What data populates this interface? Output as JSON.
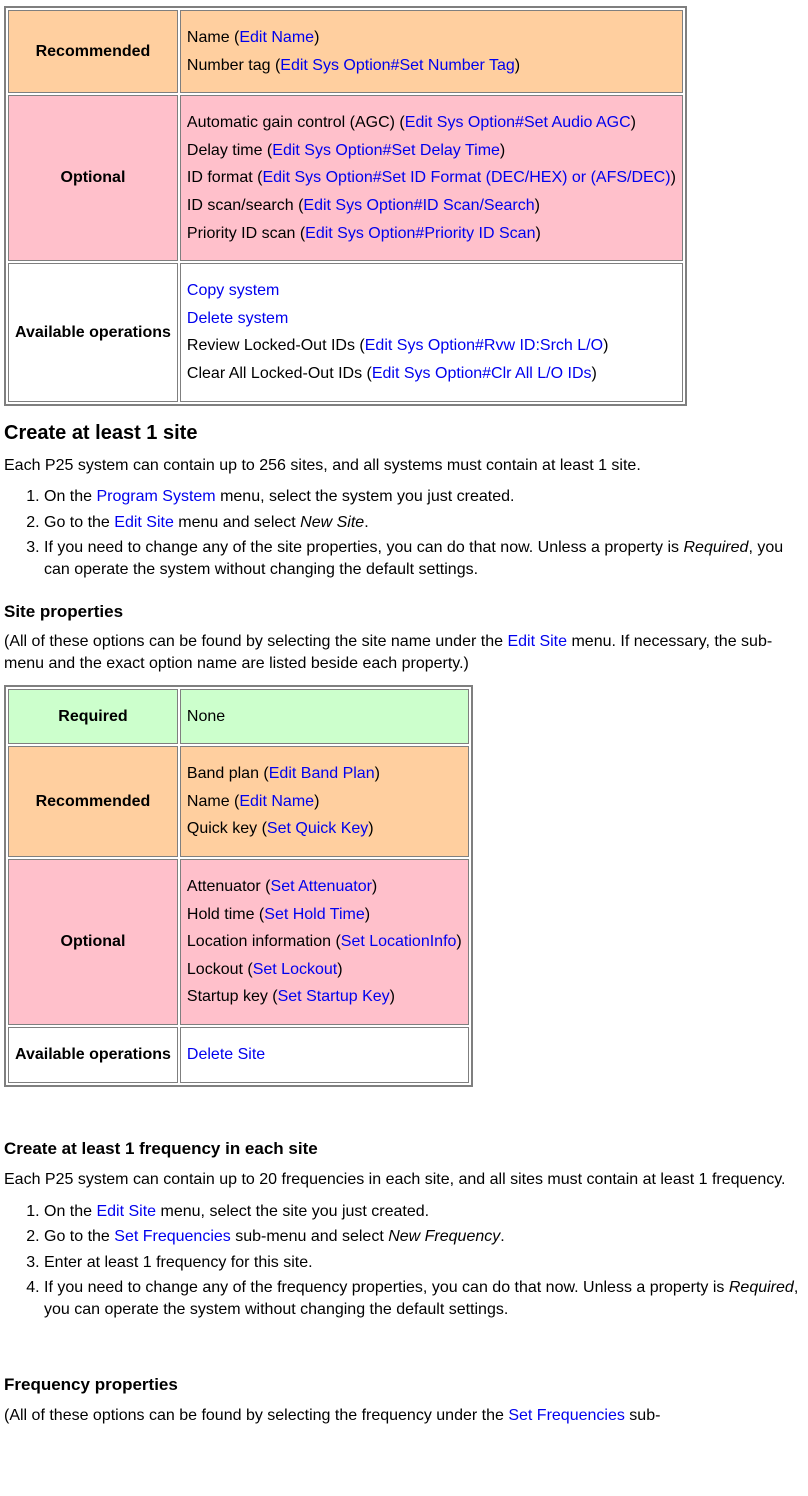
{
  "colors": {
    "required_bg": "#ccffcc",
    "recommended_bg": "#ffcf9f",
    "optional_bg": "#ffc0cb",
    "ops_bg": "#ffffff",
    "link": "#0000ee",
    "border": "#7f7f7f"
  },
  "labels": {
    "required": "Required",
    "recommended": "Recommended",
    "optional": "Optional",
    "available_ops": "Available operations"
  },
  "system_table": {
    "recommended": [
      {
        "prefix": "Name (",
        "link": "Edit Name",
        "suffix": ")"
      },
      {
        "prefix": "Number tag (",
        "link": "Edit Sys Option#Set Number Tag",
        "suffix": ")"
      }
    ],
    "optional": [
      {
        "prefix": "Automatic gain control (AGC) (",
        "link": "Edit Sys Option#Set Audio AGC",
        "suffix": ")"
      },
      {
        "prefix": "Delay time (",
        "link": "Edit Sys Option#Set Delay Time",
        "suffix": ")"
      },
      {
        "prefix": "ID format (",
        "link": "Edit Sys Option#Set ID Format (DEC/HEX) or (AFS/DEC)",
        "suffix": ")"
      },
      {
        "prefix": "ID scan/search (",
        "link": "Edit Sys Option#ID Scan/Search",
        "suffix": ")"
      },
      {
        "prefix": "Priority ID scan (",
        "link": "Edit Sys Option#Priority ID Scan",
        "suffix": ")"
      }
    ],
    "ops": [
      {
        "prefix": "",
        "link": "Copy system",
        "suffix": ""
      },
      {
        "prefix": "",
        "link": "Delete system",
        "suffix": ""
      },
      {
        "prefix": "Review Locked-Out IDs (",
        "link": "Edit Sys Option#Rvw ID:Srch L/O",
        "suffix": ")"
      },
      {
        "prefix": "Clear All Locked-Out IDs (",
        "link": "Edit Sys Option#Clr All L/O IDs",
        "suffix": ")"
      }
    ]
  },
  "site_section": {
    "heading": "Create at least 1 site",
    "intro": "Each P25 system can contain up to 256 sites, and all systems must contain at least 1 site.",
    "steps": {
      "s1a": "On the ",
      "s1_link": "Program System",
      "s1b": " menu, select the system you just created.",
      "s2a": "Go to the ",
      "s2_link": "Edit Site",
      "s2b": " menu and select ",
      "s2_em": "New Site",
      "s2c": ".",
      "s3a": "If you need to change any of the site properties, you can do that now. Unless a property is ",
      "s3_em": "Required",
      "s3b": ", you can operate the system without changing the default settings."
    },
    "props_heading": "Site properties",
    "props_intro_a": "(All of these options can be found by selecting the site name under the ",
    "props_intro_link": "Edit Site",
    "props_intro_b": " menu. If necessary, the sub-menu and the exact option name are listed beside each property.)"
  },
  "site_table": {
    "required": [
      {
        "prefix": "",
        "link": "None",
        "suffix": "",
        "nolink": true
      }
    ],
    "recommended": [
      {
        "prefix": "Band plan (",
        "link": "Edit Band Plan",
        "suffix": ")"
      },
      {
        "prefix": "Name (",
        "link": "Edit Name",
        "suffix": ")"
      },
      {
        "prefix": "Quick key (",
        "link": "Set Quick Key",
        "suffix": ")"
      }
    ],
    "optional": [
      {
        "prefix": "Attenuator (",
        "link": "Set Attenuator",
        "suffix": ")"
      },
      {
        "prefix": "Hold time (",
        "link": "Set Hold Time",
        "suffix": ")"
      },
      {
        "prefix": "Location information (",
        "link": "Set LocationInfo",
        "suffix": ")"
      },
      {
        "prefix": "Lockout (",
        "link": "Set Lockout",
        "suffix": ")"
      },
      {
        "prefix": "Startup key (",
        "link": "Set Startup Key",
        "suffix": ")"
      }
    ],
    "ops": [
      {
        "prefix": "",
        "link": "Delete Site",
        "suffix": ""
      }
    ]
  },
  "freq_section": {
    "heading": "Create at least 1 frequency in each site",
    "intro": "Each P25 system can contain up to 20 frequencies in each site, and all sites must contain at least 1 frequency.",
    "steps": {
      "s1a": "On the ",
      "s1_link": "Edit Site",
      "s1b": " menu, select the site you just created.",
      "s2a": "Go to the ",
      "s2_link": "Set Frequencies",
      "s2b": " sub-menu and select ",
      "s2_em": "New Frequency",
      "s2c": ".",
      "s3": "Enter at least 1 frequency for this site.",
      "s4a": "If you need to change any of the frequency properties, you can do that now. Unless a property is ",
      "s4_em": "Required",
      "s4b": ", you can operate the system without changing the default settings."
    },
    "props_heading": "Frequency properties",
    "props_intro_a": "(All of these options can be found by selecting the frequency under the ",
    "props_intro_link": "Set Frequencies",
    "props_intro_b": " sub-"
  }
}
